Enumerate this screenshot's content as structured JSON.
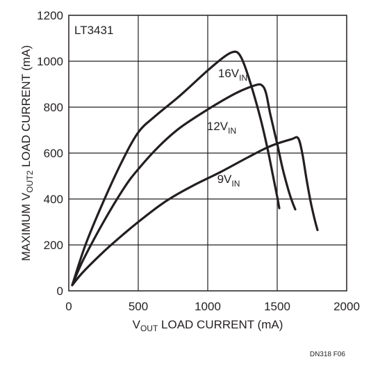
{
  "chart_data": {
    "type": "line",
    "inset_label": "LT3431",
    "figure_id": "DN318 F06",
    "xlabel": {
      "main": "V",
      "sub": "OUT",
      "rest": " LOAD CURRENT (mA)"
    },
    "ylabel": {
      "main": "MAXIMUM V",
      "sub": "OUT2",
      "rest": " LOAD CURRENT (mA)"
    },
    "xlim": [
      0,
      2000
    ],
    "ylim": [
      0,
      1200
    ],
    "xticks": [
      0,
      500,
      1000,
      1500,
      2000
    ],
    "yticks": [
      0,
      200,
      400,
      600,
      800,
      1000,
      1200
    ],
    "grid": true,
    "series": [
      {
        "name": "16V",
        "name_main": "16V",
        "name_sub": "IN",
        "x": [
          25,
          120,
          250,
          380,
          500,
          620,
          800,
          1000,
          1120,
          1180,
          1220,
          1260,
          1320,
          1380,
          1430,
          1470,
          1500,
          1515
        ],
        "y": [
          25,
          200,
          390,
          560,
          690,
          760,
          850,
          960,
          1020,
          1040,
          1035,
          990,
          880,
          750,
          620,
          500,
          410,
          360
        ]
      },
      {
        "name": "12V",
        "name_main": "12V",
        "name_sub": "IN",
        "x": [
          25,
          100,
          250,
          400,
          500,
          650,
          800,
          1000,
          1200,
          1340,
          1390,
          1420,
          1450,
          1500,
          1540,
          1580,
          1610,
          1630
        ],
        "y": [
          25,
          130,
          300,
          450,
          530,
          630,
          710,
          790,
          860,
          895,
          895,
          860,
          770,
          640,
          530,
          440,
          385,
          355
        ]
      },
      {
        "name": "9V",
        "name_main": "9V",
        "name_sub": "IN",
        "x": [
          25,
          100,
          250,
          400,
          500,
          650,
          750,
          900,
          1100,
          1300,
          1450,
          1600,
          1650,
          1680,
          1710,
          1740,
          1770,
          1790
        ],
        "y": [
          25,
          80,
          170,
          250,
          300,
          370,
          410,
          460,
          520,
          585,
          630,
          660,
          665,
          600,
          490,
          390,
          310,
          265
        ]
      }
    ],
    "series_label_positions": [
      {
        "x": 1180,
        "y": 930
      },
      {
        "x": 1100,
        "y": 700
      },
      {
        "x": 1150,
        "y": 470
      }
    ]
  }
}
